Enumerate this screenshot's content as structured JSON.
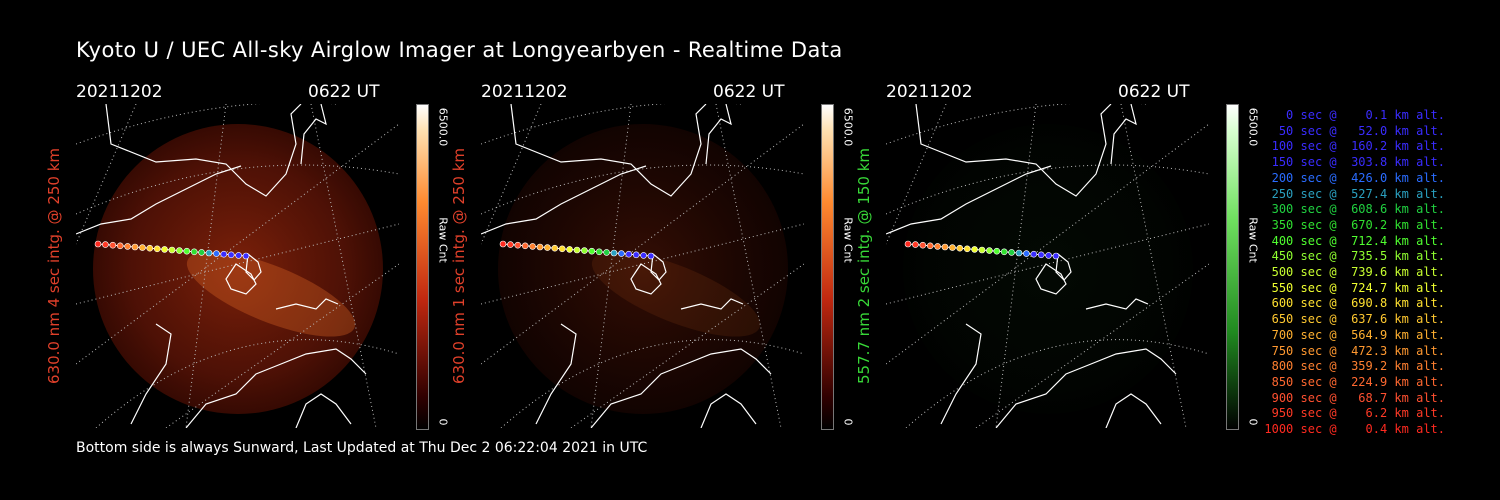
{
  "title": "Kyoto U / UEC All-sky Airglow Imager at Longyearbyen - Realtime Data",
  "footer": "Bottom side is always Sunward, Last Updated at Thu Dec  2 06:22:04 2021 in UTC",
  "panels": [
    {
      "date": "20211202",
      "time": "0622 UT",
      "ylabel": "630.0 nm 4 sec intg. @ 250 km",
      "label_color": "#e0402a",
      "cbar_max": "6500.0",
      "cbar_min": "0",
      "cbar_unit": "Raw Cnt",
      "colormap": "red",
      "brightness": 0.55
    },
    {
      "date": "20211202",
      "time": "0622 UT",
      "ylabel": "630.0 nm 1 sec intg. @ 250 km",
      "label_color": "#e0402a",
      "cbar_max": "6500.0",
      "cbar_min": "0",
      "cbar_unit": "Raw Cnt",
      "colormap": "red",
      "brightness": 0.18
    },
    {
      "date": "20211202",
      "time": "0622 UT",
      "ylabel": "557.7 nm 2 sec intg. @ 150 km",
      "label_color": "#38d838",
      "cbar_max": "6500.0",
      "cbar_min": "0",
      "cbar_unit": "Raw Cnt",
      "colormap": "green",
      "brightness": 0.08
    }
  ],
  "legend": [
    {
      "text": "0 sec @    0.1 km alt.",
      "color": "#3a2cff"
    },
    {
      "text": "50 sec @   52.0 km alt.",
      "color": "#3a2cff"
    },
    {
      "text": "100 sec @  160.2 km alt.",
      "color": "#3a2cff"
    },
    {
      "text": "150 sec @  303.8 km alt.",
      "color": "#3a2cff"
    },
    {
      "text": "200 sec @  426.0 km alt.",
      "color": "#2a6cff"
    },
    {
      "text": "250 sec @  527.4 km alt.",
      "color": "#2aa0c0"
    },
    {
      "text": "300 sec @  608.6 km alt.",
      "color": "#20d040"
    },
    {
      "text": "350 sec @  670.2 km alt.",
      "color": "#30e030"
    },
    {
      "text": "400 sec @  712.4 km alt.",
      "color": "#50ff30"
    },
    {
      "text": "450 sec @  735.5 km alt.",
      "color": "#90ff30"
    },
    {
      "text": "500 sec @  739.6 km alt.",
      "color": "#c8ff30"
    },
    {
      "text": "550 sec @  724.7 km alt.",
      "color": "#f0ff30"
    },
    {
      "text": "600 sec @  690.8 km alt.",
      "color": "#ffe030"
    },
    {
      "text": "650 sec @  637.6 km alt.",
      "color": "#ffc830"
    },
    {
      "text": "700 sec @  564.9 km alt.",
      "color": "#ffb030"
    },
    {
      "text": "750 sec @  472.3 km alt.",
      "color": "#ff9830"
    },
    {
      "text": "800 sec @  359.2 km alt.",
      "color": "#ff8030"
    },
    {
      "text": "850 sec @  224.9 km alt.",
      "color": "#ff6830"
    },
    {
      "text": "900 sec @   68.7 km alt.",
      "color": "#ff5030"
    },
    {
      "text": "950 sec @    6.2 km alt.",
      "color": "#ff3a26"
    },
    {
      "text": "1000 sec @    0.4 km alt.",
      "color": "#ff2a20"
    }
  ]
}
